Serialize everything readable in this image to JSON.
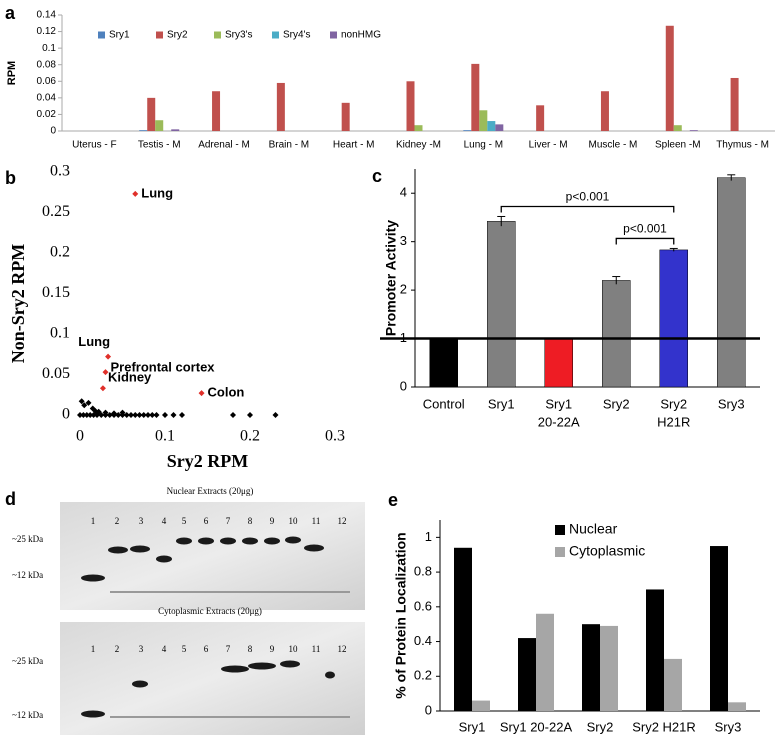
{
  "chart_data": [
    {
      "type": "bar",
      "panel": "a",
      "ylabel": "RPM",
      "legend": "top-left",
      "categories": [
        "Uterus - F",
        "Testis - M",
        "Adrenal - M",
        "Brain - M",
        "Heart - M",
        "Kidney -M",
        "Lung - M",
        "Liver - M",
        "Muscle - M",
        "Spleen -M",
        "Thymus - M"
      ],
      "series": [
        {
          "name": "Sry1",
          "color": "#4f81bd",
          "values": [
            0,
            0.001,
            0,
            0,
            0,
            0,
            0.001,
            0,
            0,
            0,
            0
          ]
        },
        {
          "name": "Sry2",
          "color": "#c0504d",
          "values": [
            0,
            0.04,
            0.048,
            0.058,
            0.034,
            0.06,
            0.081,
            0.031,
            0.048,
            0.127,
            0.064
          ]
        },
        {
          "name": "Sry3's",
          "color": "#9bbb59",
          "values": [
            0,
            0.013,
            0,
            0,
            0,
            0.007,
            0.025,
            0,
            0,
            0.007,
            0
          ]
        },
        {
          "name": "Sry4's",
          "color": "#4bacc6",
          "values": [
            0,
            0,
            0,
            0,
            0,
            0,
            0.012,
            0,
            0,
            0,
            0
          ]
        },
        {
          "name": "nonHMG",
          "color": "#8064a2",
          "values": [
            0,
            0.002,
            0,
            0,
            0,
            0,
            0.008,
            0,
            0,
            0.001,
            0
          ]
        }
      ],
      "ylim": [
        0,
        0.14
      ],
      "yticks": [
        0,
        0.02,
        0.04,
        0.06,
        0.08,
        0.1,
        0.12,
        0.14
      ]
    },
    {
      "type": "scatter",
      "panel": "b",
      "xlabel": "Sry2 RPM",
      "ylabel": "Non-Sry2 RPM",
      "color": "#000000",
      "x": [
        0.002,
        0.005,
        0.01,
        0.015,
        0.018,
        0.022,
        0.03,
        0.04,
        0.05,
        0.0,
        0.004,
        0.008,
        0.012,
        0.016,
        0.02,
        0.025,
        0.03,
        0.035,
        0.04,
        0.045,
        0.05,
        0.055,
        0.06,
        0.065,
        0.07,
        0.075,
        0.08,
        0.085,
        0.09,
        0.1,
        0.11,
        0.12,
        0.18,
        0.2,
        0.23
      ],
      "values": [
        0.017,
        0.012,
        0.015,
        0.008,
        0.005,
        0.004,
        0.003,
        0.002,
        0.003,
        0,
        0,
        0,
        0,
        0,
        0,
        0,
        0,
        0,
        0,
        0,
        0,
        0,
        0,
        0,
        0,
        0,
        0,
        0,
        0,
        0,
        0,
        0,
        0,
        0,
        0
      ],
      "labeled_points": {
        "color": "#e0302a",
        "x": [
          0.065,
          0.033,
          0.03,
          0.027,
          0.143
        ],
        "values": [
          0.273,
          0.072,
          0.053,
          0.033,
          0.027
        ],
        "labels": [
          "Lung",
          "Lung",
          "Prefrontal cortex",
          "Kidney",
          "Colon"
        ]
      },
      "xlim": [
        0,
        0.3
      ],
      "xticks": [
        0,
        0.1,
        0.2,
        0.3
      ],
      "ylim": [
        0,
        0.3
      ],
      "yticks": [
        0,
        0.05,
        0.1,
        0.15,
        0.2,
        0.25,
        0.3
      ]
    },
    {
      "type": "bar",
      "panel": "c",
      "ylabel": "Promoter Activity",
      "categories": [
        [
          "Control"
        ],
        [
          "Sry1"
        ],
        [
          "Sry1",
          "20-22A"
        ],
        [
          "Sry2"
        ],
        [
          "Sry2",
          "H21R"
        ],
        [
          "Sry3"
        ]
      ],
      "values": [
        1.0,
        3.42,
        1.0,
        2.2,
        2.83,
        4.32
      ],
      "errors": [
        0,
        0.1,
        0,
        0.08,
        0.03,
        0.06
      ],
      "colors": [
        "#000000",
        "#808080",
        "#ee1c24",
        "#808080",
        "#3333cc",
        "#808080"
      ],
      "hline": 1,
      "brackets": [
        {
          "text": "p<0.001",
          "from": 1,
          "to": 4
        },
        {
          "text": "p<0.001",
          "from": 3,
          "to": 4
        }
      ],
      "ylim": [
        0,
        4.5
      ],
      "yticks": [
        0,
        1,
        2,
        3,
        4
      ]
    },
    {
      "type": "bar",
      "panel": "e",
      "ylabel": "% of Protein Localization",
      "legend": "top-right",
      "categories": [
        "Sry1",
        "Sry1 20-22A",
        "Sry2",
        "Sry2 H21R",
        "Sry3"
      ],
      "series": [
        {
          "name": "Nuclear",
          "color": "#000000",
          "values": [
            0.94,
            0.42,
            0.5,
            0.7,
            0.95
          ]
        },
        {
          "name": "Cytoplasmic",
          "color": "#a6a6a6",
          "values": [
            0.06,
            0.56,
            0.49,
            0.3,
            0.05
          ]
        }
      ],
      "ylim": [
        0,
        1.1
      ],
      "yticks": [
        0,
        0.2,
        0.4,
        0.6,
        0.8,
        1
      ]
    }
  ],
  "blot": {
    "panel": "d",
    "panels": [
      {
        "title": "Nuclear Extracts (20μg)",
        "markers": [
          "~25 kDa",
          "~12 kDa"
        ],
        "lanes": [
          "1",
          "2",
          "3",
          "4",
          "5",
          "6",
          "7",
          "8",
          "9",
          "10",
          "11",
          "12"
        ]
      },
      {
        "title": "Cytoplasmic Extracts (20μg)",
        "markers": [
          "~25 kDa",
          "~12 kDa"
        ],
        "lanes": [
          "1",
          "2",
          "3",
          "4",
          "5",
          "6",
          "7",
          "8",
          "9",
          "10",
          "11",
          "12"
        ]
      }
    ]
  }
}
